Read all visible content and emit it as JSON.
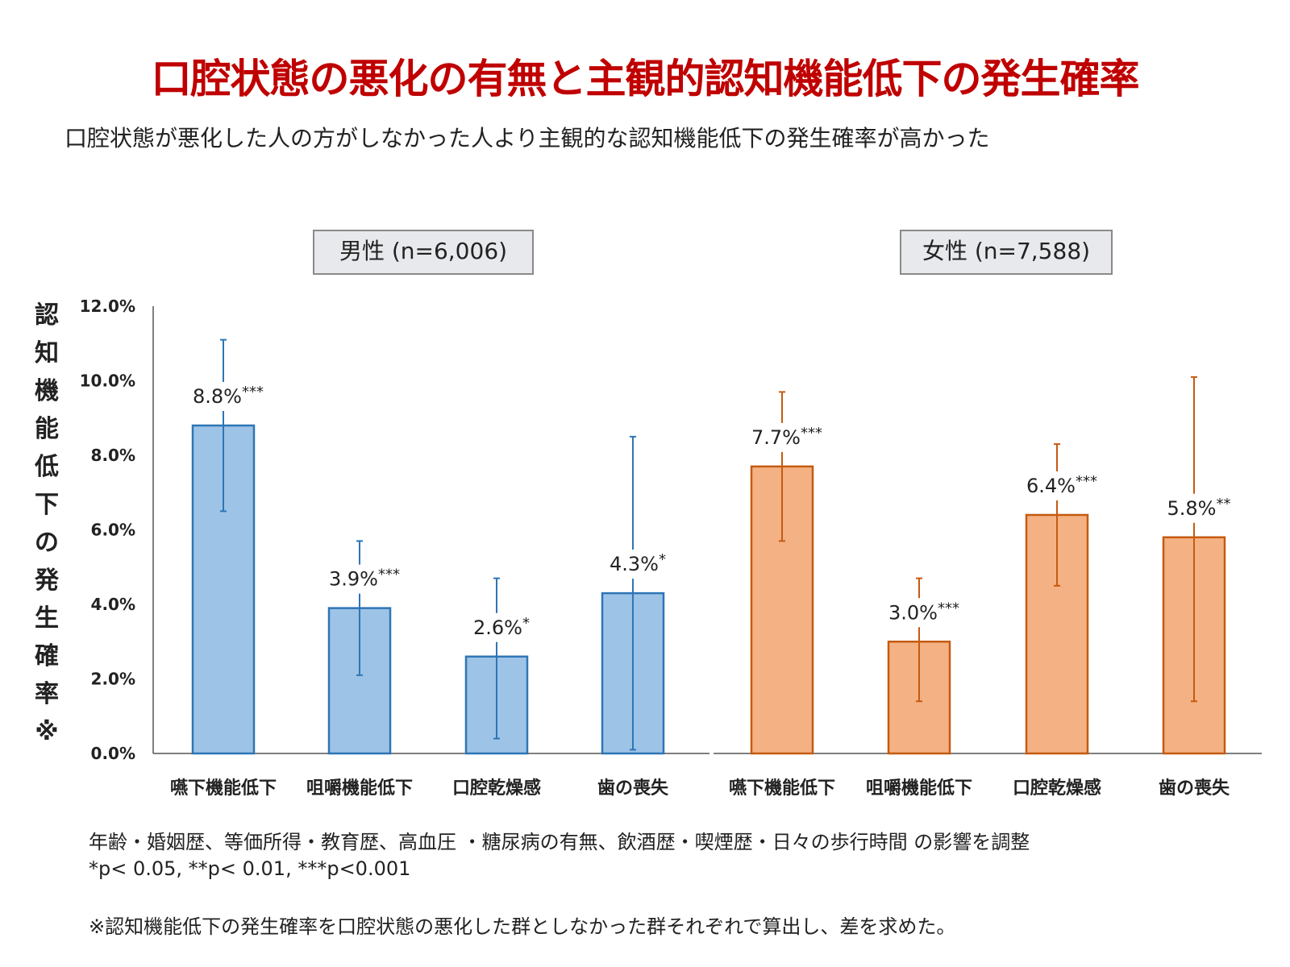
{
  "title": "口腔状態の悪化の有無と主観的認知機能低下の発生確率",
  "subtitle": "口腔状態が悪化した人の方がしなかった人より主観的な認知機能低下の発生確率が高かった",
  "y_axis_label": "認知機能低下の発生確率※",
  "notes": {
    "adjustment": "年齢・婚姻歴、等価所得・教育歴、高血圧 ・糖尿病の有無、飲酒歴・喫煙歴・日々の歩行時間 の影響を調整",
    "pvalues": "*p< 0.05, **p< 0.01, ***p<0.001",
    "footnote": "※認知機能低下の発生確率を口腔状態の悪化した群としなかった群それぞれで算出し、差を求めた。"
  },
  "chart_data": {
    "type": "bar",
    "ylim": [
      0,
      12
    ],
    "yticks": [
      "0.0%",
      "2.0%",
      "4.0%",
      "6.0%",
      "8.0%",
      "10.0%",
      "12.0%"
    ],
    "categories": [
      "嚥下機能低下",
      "咀嚼機能低下",
      "口腔乾燥感",
      "歯の喪失"
    ],
    "series": [
      {
        "name": "男性 (n=6,006)",
        "color": "#9dc3e6",
        "stroke": "#2e75b6",
        "values": [
          8.8,
          3.9,
          2.6,
          4.3
        ],
        "err_low": [
          6.5,
          2.1,
          0.4,
          0.1
        ],
        "err_high": [
          11.1,
          5.7,
          4.7,
          8.5
        ],
        "labels": [
          "8.8%",
          "3.9%",
          "2.6%",
          "4.3%"
        ],
        "sig": [
          "***",
          "***",
          "*",
          "*"
        ]
      },
      {
        "name": "女性 (n=7,588)",
        "color": "#f4b183",
        "stroke": "#c55a11",
        "values": [
          7.7,
          3.0,
          6.4,
          5.8
        ],
        "err_low": [
          5.7,
          1.4,
          4.5,
          1.4
        ],
        "err_high": [
          9.7,
          4.7,
          8.3,
          10.1
        ],
        "labels": [
          "7.7%",
          "3.0%",
          "6.4%",
          "5.8%"
        ],
        "sig": [
          "***",
          "***",
          "***",
          "**"
        ]
      }
    ]
  }
}
